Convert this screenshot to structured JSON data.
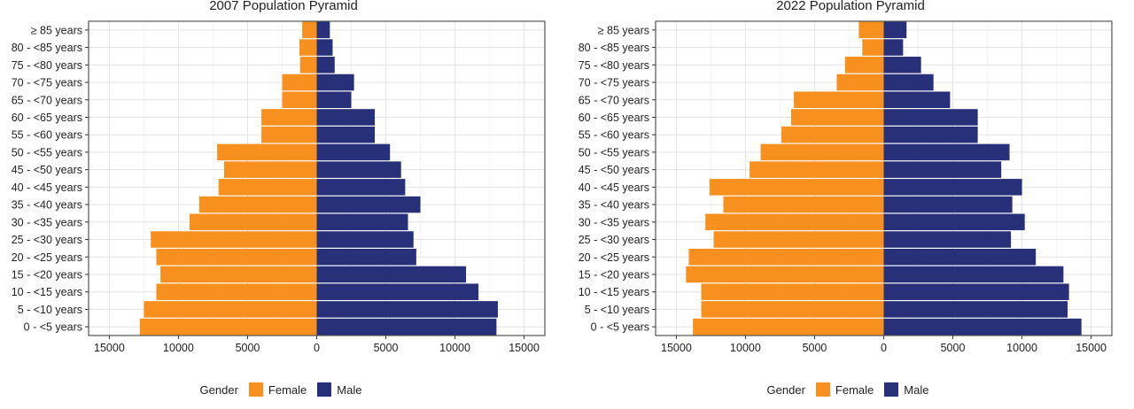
{
  "legend": {
    "title": "Gender",
    "items": [
      {
        "label": "Female",
        "color": "#f7901e"
      },
      {
        "label": "Male",
        "color": "#283079"
      }
    ]
  },
  "chart_data": [
    {
      "type": "bar",
      "orientation": "horizontal-pyramid",
      "title": "2007 Population Pyramid",
      "xlabel": "",
      "ylabel": "",
      "xlim": [
        -16500,
        16500
      ],
      "xticks": [
        -15000,
        -10000,
        -5000,
        0,
        5000,
        10000,
        15000
      ],
      "xtick_labels": [
        "15000",
        "10000",
        "5000",
        "0",
        "5000",
        "10000",
        "15000"
      ],
      "grid": true,
      "legend_position": "bottom",
      "categories": [
        "0 - <5 years",
        "5 - <10 years",
        "10 - <15 years",
        "15 - <20 years",
        "20 - <25 years",
        "25 - <30 years",
        "30 - <35 years",
        "35 - <40 years",
        "40 - <45 years",
        "45 - <50 years",
        "50 - <55 years",
        "55 - <60 years",
        "60 - <65 years",
        "65 - <70 years",
        "70 - <75 years",
        "75 - <80 years",
        "80 - <85 years",
        "≥ 85 years"
      ],
      "series": [
        {
          "name": "Female",
          "color": "#f7901e",
          "values": [
            12800,
            12500,
            11600,
            11300,
            11600,
            12000,
            9200,
            8500,
            7100,
            6700,
            7200,
            4000,
            4000,
            2500,
            2500,
            1200,
            1250,
            1050
          ]
        },
        {
          "name": "Male",
          "color": "#283079",
          "values": [
            13000,
            13100,
            11700,
            10800,
            7200,
            7000,
            6600,
            7500,
            6400,
            6100,
            5300,
            4200,
            4200,
            2500,
            2700,
            1300,
            1150,
            950
          ]
        }
      ]
    },
    {
      "type": "bar",
      "orientation": "horizontal-pyramid",
      "title": "2022 Population Pyramid",
      "xlabel": "",
      "ylabel": "",
      "xlim": [
        -16500,
        16500
      ],
      "xticks": [
        -15000,
        -10000,
        -5000,
        0,
        5000,
        10000,
        15000
      ],
      "xtick_labels": [
        "15000",
        "10000",
        "5000",
        "0",
        "5000",
        "10000",
        "15000"
      ],
      "grid": true,
      "legend_position": "bottom",
      "categories": [
        "0 - <5 years",
        "5 - <10 years",
        "10 - <15 years",
        "15 - <20 years",
        "20 - <25 years",
        "25 - <30 years",
        "30 - <35 years",
        "35 - <40 years",
        "40 - <45 years",
        "45 - <50 years",
        "50 - <55 years",
        "55 - <60 years",
        "60 - <65 years",
        "65 - <70 years",
        "70 - <75 years",
        "75 - <80 years",
        "80 - <85 years",
        "≥ 85 years"
      ],
      "series": [
        {
          "name": "Female",
          "color": "#f7901e",
          "values": [
            13800,
            13200,
            13200,
            14300,
            14100,
            12300,
            12900,
            11600,
            12600,
            9700,
            8900,
            7400,
            6700,
            6500,
            3400,
            2800,
            1550,
            1800
          ]
        },
        {
          "name": "Male",
          "color": "#283079",
          "values": [
            14300,
            13300,
            13400,
            13000,
            11000,
            9200,
            10200,
            9300,
            10000,
            8500,
            9100,
            6800,
            6800,
            4800,
            3600,
            2700,
            1400,
            1650
          ]
        }
      ]
    }
  ]
}
